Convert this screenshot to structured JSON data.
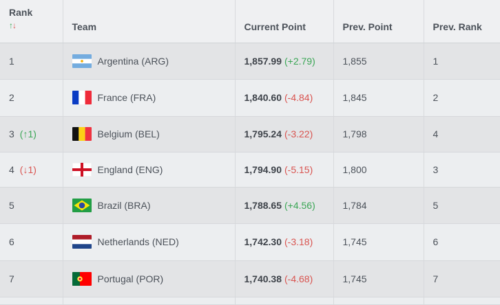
{
  "header": {
    "rank": "Rank",
    "sort_up": "↑",
    "sort_down": "↓",
    "team": "Team",
    "current_point": "Current Point",
    "prev_point": "Prev. Point",
    "prev_rank": "Prev. Rank"
  },
  "rows": [
    {
      "rank": "1",
      "movement": "",
      "team": "Argentina (ARG)",
      "flag": "argentina-flag",
      "current": "1,857.99",
      "change": "(+2.79)",
      "prev_point": "1,855",
      "prev_rank": "1"
    },
    {
      "rank": "2",
      "movement": "",
      "team": "France (FRA)",
      "flag": "france-flag",
      "current": "1,840.60",
      "change": "(-4.84)",
      "prev_point": "1,845",
      "prev_rank": "2"
    },
    {
      "rank": "3",
      "movement": "(↑1)",
      "team": "Belgium (BEL)",
      "flag": "belgium-flag",
      "current": "1,795.24",
      "change": "(-3.22)",
      "prev_point": "1,798",
      "prev_rank": "4"
    },
    {
      "rank": "4",
      "movement": "(↓1)",
      "team": "England (ENG)",
      "flag": "england-flag",
      "current": "1,794.90",
      "change": "(-5.15)",
      "prev_point": "1,800",
      "prev_rank": "3"
    },
    {
      "rank": "5",
      "movement": "",
      "team": "Brazil (BRA)",
      "flag": "brazil-flag",
      "current": "1,788.65",
      "change": "(+4.56)",
      "prev_point": "1,784",
      "prev_rank": "5"
    },
    {
      "rank": "6",
      "movement": "",
      "team": "Netherlands (NED)",
      "flag": "netherlands-flag",
      "current": "1,742.30",
      "change": "(-3.18)",
      "prev_point": "1,745",
      "prev_rank": "6"
    },
    {
      "rank": "7",
      "movement": "",
      "team": "Portugal (POR)",
      "flag": "portugal-flag",
      "current": "1,740.38",
      "change": "(-4.68)",
      "prev_point": "1,745",
      "prev_rank": "7"
    }
  ],
  "colors": {
    "positive": "#3aa655",
    "negative": "#d9534f"
  }
}
